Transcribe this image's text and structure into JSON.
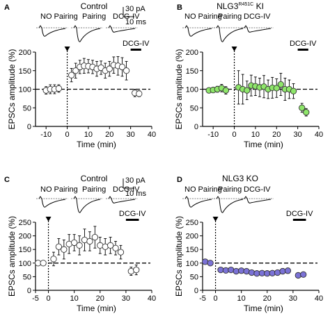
{
  "panels": [
    {
      "label": "A",
      "title": "Control",
      "title_sup": "",
      "title_suffix": "",
      "conditions": [
        "NO Pairing",
        "Pairing",
        "DCG-IV"
      ],
      "scalebar": {
        "y_label": "30 pA",
        "x_label": "10 ms"
      },
      "drug_label": "DCG-IV",
      "chart_data": {
        "type": "scatter",
        "xlabel": "Time (min)",
        "ylabel": "EPSCs amplitude (%)",
        "xlim": [
          -15,
          40
        ],
        "ylim": [
          0,
          200
        ],
        "xticks": [
          -10,
          0,
          10,
          20,
          30,
          40
        ],
        "yticks": [
          0,
          50,
          100,
          150,
          200
        ],
        "marker_fill": "#ffffff",
        "reference_line": 100,
        "pairing_time": 0,
        "drug_window": [
          30,
          35
        ],
        "series": [
          {
            "x": [
              -10,
              -8,
              -6,
              -4,
              2,
              4,
              6,
              8,
              10,
              12,
              14,
              16,
              18,
              20,
              22,
              24,
              26,
              28,
              32,
              34
            ],
            "y": [
              97,
              100,
              100,
              102,
              138,
              150,
              160,
              163,
              162,
              160,
              155,
              158,
              150,
              155,
              165,
              163,
              160,
              150,
              90,
              88
            ],
            "err": [
              10,
              12,
              12,
              10,
              18,
              20,
              18,
              20,
              18,
              18,
              20,
              18,
              20,
              20,
              22,
              25,
              25,
              25,
              10,
              8
            ]
          }
        ]
      }
    },
    {
      "label": "B",
      "title": "NLG3",
      "title_sup": "R451C",
      "title_suffix": " KI",
      "conditions": [
        "NO Pairing",
        "Pairing",
        "DCG-IV"
      ],
      "scalebar": {
        "y_label": "",
        "x_label": ""
      },
      "drug_label": "DCG-IV",
      "chart_data": {
        "type": "scatter",
        "xlabel": "Time (min)",
        "ylabel": "EPSCs amplitude (%)",
        "xlim": [
          -15,
          40
        ],
        "ylim": [
          0,
          200
        ],
        "xticks": [
          -10,
          0,
          10,
          20,
          30,
          40
        ],
        "yticks": [
          0,
          50,
          100,
          150,
          200
        ],
        "marker_fill": "#8ee66a",
        "reference_line": 100,
        "pairing_time": 0,
        "drug_window": [
          30,
          35
        ],
        "series": [
          {
            "x": [
              -12,
              -10,
              -8,
              -6,
              -4,
              2,
              4,
              6,
              8,
              10,
              12,
              14,
              16,
              18,
              20,
              22,
              24,
              26,
              28,
              32,
              34
            ],
            "y": [
              97,
              98,
              100,
              103,
              97,
              105,
              100,
              97,
              110,
              108,
              105,
              107,
              100,
              104,
              103,
              113,
              100,
              100,
              95,
              50,
              38
            ],
            "err": [
              5,
              6,
              8,
              10,
              10,
              45,
              40,
              25,
              28,
              25,
              25,
              30,
              25,
              28,
              25,
              30,
              30,
              25,
              20,
              12,
              10
            ]
          }
        ]
      }
    },
    {
      "label": "C",
      "title": "Control",
      "title_sup": "",
      "title_suffix": "",
      "conditions": [
        "NO Pairing",
        "Pairing",
        "DCG-IV"
      ],
      "scalebar": {
        "y_label": "30 pA",
        "x_label": "10 ms"
      },
      "drug_label": "DCG-IV",
      "chart_data": {
        "type": "scatter",
        "xlabel": "Time (min)",
        "ylabel": "EPSCs amplitude (%)",
        "xlim": [
          -5,
          40
        ],
        "ylim": [
          0,
          250
        ],
        "xticks": [
          -5,
          0,
          10,
          20,
          30,
          40
        ],
        "yticks": [
          0,
          50,
          100,
          150,
          200,
          250
        ],
        "marker_fill": "#ffffff",
        "reference_line": 100,
        "pairing_time": 0,
        "drug_window": [
          30,
          35
        ],
        "series": [
          {
            "x": [
              -4,
              -2,
              2,
              4,
              6,
              8,
              10,
              12,
              14,
              16,
              18,
              20,
              22,
              24,
              26,
              28,
              32,
              34
            ],
            "y": [
              100,
              100,
              115,
              160,
              150,
              170,
              175,
              165,
              185,
              180,
              195,
              165,
              160,
              165,
              155,
              140,
              70,
              75
            ],
            "err": [
              4,
              4,
              25,
              30,
              35,
              35,
              30,
              35,
              40,
              35,
              40,
              30,
              30,
              30,
              25,
              25,
              15,
              18
            ]
          }
        ]
      }
    },
    {
      "label": "D",
      "title": "NLG3 KO",
      "title_sup": "",
      "title_suffix": "",
      "conditions": [
        "NO Pairing",
        "Pairing",
        "DCG-IV"
      ],
      "scalebar": {
        "y_label": "",
        "x_label": ""
      },
      "drug_label": "DCG-IV",
      "chart_data": {
        "type": "scatter",
        "xlabel": "Time (min)",
        "ylabel": "EPSCs amplitude (%)",
        "xlim": [
          -5,
          40
        ],
        "ylim": [
          0,
          250
        ],
        "xticks": [
          -5,
          0,
          10,
          20,
          30,
          40
        ],
        "yticks": [
          0,
          50,
          100,
          150,
          200,
          250
        ],
        "marker_fill": "#7b72d6",
        "reference_line": 100,
        "pairing_time": 0,
        "drug_window": [
          30,
          35
        ],
        "series": [
          {
            "x": [
              -4,
              -2,
              2,
              4,
              6,
              8,
              10,
              12,
              14,
              16,
              18,
              20,
              22,
              24,
              26,
              28,
              32,
              34
            ],
            "y": [
              105,
              100,
              75,
              73,
              75,
              70,
              72,
              70,
              65,
              62,
              63,
              62,
              63,
              65,
              70,
              72,
              55,
              58
            ],
            "err": [
              5,
              5,
              8,
              8,
              8,
              8,
              8,
              8,
              8,
              8,
              8,
              8,
              8,
              8,
              10,
              10,
              8,
              8
            ]
          }
        ]
      }
    }
  ]
}
